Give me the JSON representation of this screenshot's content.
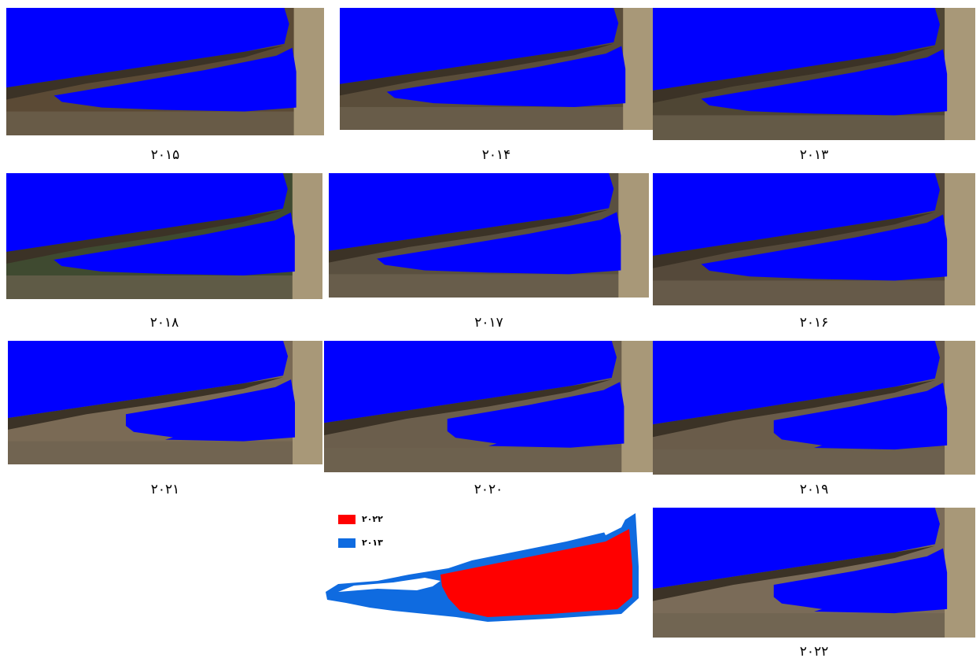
{
  "panels": [
    {
      "caption": "۲۰۱۵"
    },
    {
      "caption": "۲۰۱۴"
    },
    {
      "caption": "۲۰۱۳"
    },
    {
      "caption": "۲۰۱۸"
    },
    {
      "caption": "۲۰۱۷"
    },
    {
      "caption": "۲۰۱۶"
    },
    {
      "caption": "۲۰۲۱"
    },
    {
      "caption": "۲۰۲۰"
    },
    {
      "caption": "۲۰۱۹"
    },
    {
      "caption": "۲۰۲۲"
    }
  ],
  "legend": {
    "items": [
      {
        "label": "۲۰۲۲",
        "color": "#ff0000"
      },
      {
        "label": "۲۰۱۳",
        "color": "#0f6be0"
      }
    ]
  }
}
